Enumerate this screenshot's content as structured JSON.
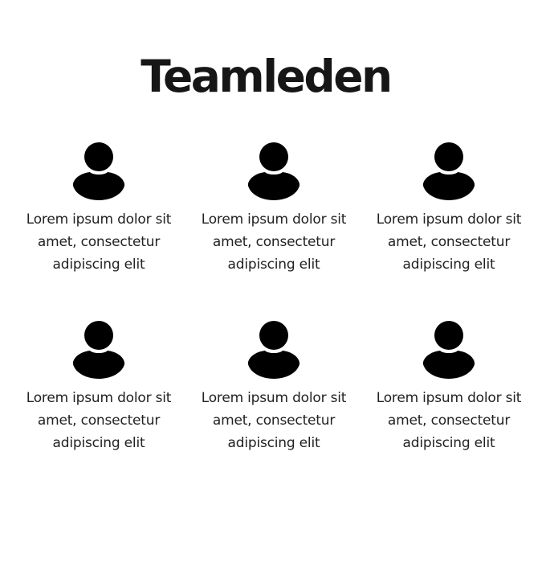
{
  "page": {
    "title": "Teamleden"
  },
  "members": [
    {
      "icon": "user-icon",
      "text": "Lorem ipsum dolor sit amet, consectetur adipiscing elit"
    },
    {
      "icon": "user-icon",
      "text": "Lorem ipsum dolor sit amet, consectetur adipiscing elit"
    },
    {
      "icon": "user-icon",
      "text": "Lorem ipsum dolor sit amet, consectetur adipiscing elit"
    },
    {
      "icon": "user-icon",
      "text": "Lorem ipsum dolor sit amet, consectetur adipiscing elit"
    },
    {
      "icon": "user-icon",
      "text": "Lorem ipsum dolor sit amet, consectetur adipiscing elit"
    },
    {
      "icon": "user-icon",
      "text": "Lorem ipsum dolor sit amet, consectetur adipiscing elit"
    }
  ],
  "colors": {
    "icon": "#000000",
    "text": "#222222",
    "title": "#161616"
  }
}
